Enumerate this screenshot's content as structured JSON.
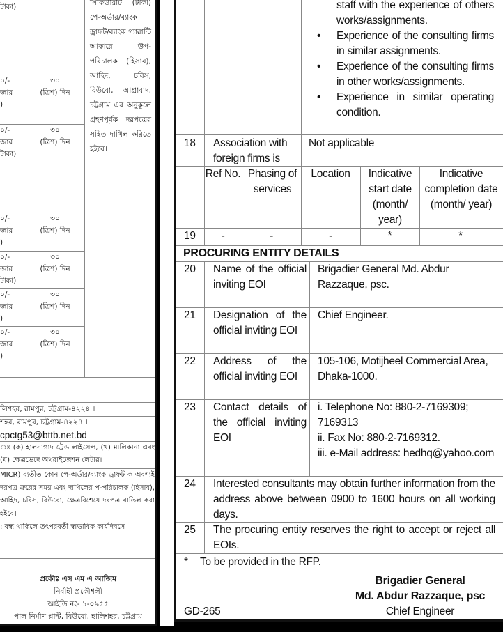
{
  "left": {
    "col1_top": "টাকা)",
    "amount_rows": [
      {
        "amount": "০/-\nজার\n)",
        "days": "৩০\n(ত্রিশ) দিন"
      },
      {
        "amount": "০/-\nজার\nটাকা)",
        "days": "৩০\n(ত্রিশ) দিন"
      },
      {
        "amount": "০/-\nজার\n)",
        "days": "৩০\n(ত্রিশ) দিন"
      },
      {
        "amount": "০/-\nজার\nটাকা)",
        "days": "৩০\n(ত্রিশ) দিন"
      },
      {
        "amount": "০/-\nজার\n)",
        "days": "৩০\n(ত্রিশ) দিন"
      },
      {
        "amount": "০/-\nজার\n)",
        "days": "৩০\n(ত্রিশ) দিন"
      }
    ],
    "security_note": "সিকিউরিটি (টাকা) পে-অর্ডার/ব্যাংক ড্রাফট/ব্যাংক গ্যারান্টি আকারে উপ-পরিচালক (হিসাব), আহিদ, চবিস, বিউবো, আগ্রাবাদ, চট্টগ্রাম এর অনুকূলে গ্রহণপূর্বক দরপত্রের সহিত দাখিল করিতে হইবে।",
    "address_1": "লিশহর, রামপুর, চট্টগ্রাম-৪২২৪ ।",
    "address_2": "শহর, রামপুর, চট্টগ্রাম-৪২২৪ ।",
    "email": "cpctg53@bttb.net.bd",
    "documents": "ঃ (ক) হালনাগাদ ট্রেড লাইসেন্স, (খ) মালিকানা এবং (ঘ) ক্ষেত্রভেদে অথরাইজেশন লেটার।",
    "payment_note": "MICR) ব্যতীত কোন পে-অর্ডার/ব্যাংক ড্রাফট ক অবশ্যই দরপত্র ক্রয়ের সময় এবং দাখিলের প-পরিচালক (হিসাব), আহিদ, চবিস, বিউবো, ক্ষেত্রবিশেষে দরপত্র বাতিল করা হইবে।",
    "holiday_note": ": বন্ধ থাকিলে তৎপরবর্তী স্বাভাবিক কার্যদিবসে",
    "signature": {
      "name": "প্রকৌঃ এস এম এ আজিম",
      "title": "নির্বাহী প্রকৌশলী",
      "id": "আইডি নং- ১-০৯৫৫",
      "office": "পাল নির্মাণ প্লান্ট, বিউবো, হালিশহর, চট্টগ্রাম"
    }
  },
  "right": {
    "criteria_cont": [
      {
        "text": "staff with the experience of others works/assignments.",
        "bullet": false
      },
      {
        "text": "Experience of the consulting firms in similar assignments.",
        "bullet": true
      },
      {
        "text": "Experience of the consulting firms in other works/assignments.",
        "bullet": true
      },
      {
        "text": "Experience in similar operating condition.",
        "bullet": true
      }
    ],
    "bullet": "•",
    "row18": {
      "no": "18",
      "label": "Association with foreign firms is",
      "value": "Not applicable"
    },
    "schedule_headers": [
      "Ref No.",
      "Phasing of services",
      "Location",
      "Indicative start date (month/ year)",
      "Indicative completion date (month/ year)"
    ],
    "row19": {
      "no": "19",
      "cells": [
        "-",
        "-",
        "-",
        "*",
        "*"
      ]
    },
    "section_title": "PROCURING ENTITY DETAILS",
    "entity_rows": [
      {
        "no": "20",
        "label": "Name of the official inviting EOI",
        "value": "Brigadier General Md. Abdur Razzaque, psc."
      },
      {
        "no": "21",
        "label": "Designation of the official inviting EOI",
        "value": "Chief Engineer."
      },
      {
        "no": "22",
        "label": "Address of the official inviting EOI",
        "value": "105-106, Motijheel Commercial Area, Dhaka-1000."
      },
      {
        "no": "23",
        "label": "Contact details of the official inviting EOI",
        "value_lines": [
          "i. Telephone No: 880-2-7169309; 7169313",
          "ii. Fax No: 880-2-7169312.",
          "iii. e-Mail address: hedhq@yahoo.com"
        ]
      }
    ],
    "row24": {
      "no": "24",
      "text": "Interested consultants may obtain further information from the address above between 0900 to 1600 hours on all working days."
    },
    "row25": {
      "no": "25",
      "text": "The procuring entity reserves the right to accept or reject all EOIs."
    },
    "footnote_mark": "*",
    "footnote": "To be provided in the RFP.",
    "signatory": {
      "line1": "Brigadier General",
      "line2": "Md. Abdur Razzaque, psc",
      "line3": "Chief Engineer"
    },
    "ref_code": "GD-265"
  }
}
